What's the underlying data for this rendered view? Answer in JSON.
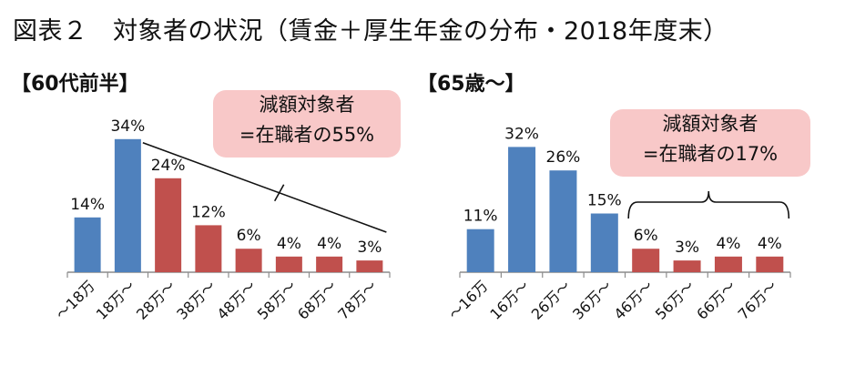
{
  "title": "図表２　対象者の状況（賃金＋厚生年金の分布・2018年度末）",
  "colors": {
    "blue": "#4f81bd",
    "red": "#c0504d",
    "callout_bg": "#f8c8c8",
    "axis": "#8c8c8c"
  },
  "chart_data": [
    {
      "type": "bar",
      "subtitle": "【60代前半】",
      "categories": [
        "～18万",
        "18万～",
        "28万～",
        "38万～",
        "48万～",
        "58万～",
        "68万～",
        "78万～"
      ],
      "values": [
        14,
        34,
        24,
        12,
        6,
        4,
        4,
        3
      ],
      "value_labels": [
        "14%",
        "34%",
        "24%",
        "12%",
        "6%",
        "4%",
        "4%",
        "3%"
      ],
      "bar_colors": [
        "#4f81bd",
        "#4f81bd",
        "#c0504d",
        "#c0504d",
        "#c0504d",
        "#c0504d",
        "#c0504d",
        "#c0504d"
      ],
      "ylim": [
        0,
        40
      ],
      "annotation": {
        "line1": "減額対象者",
        "line2": "=在職者の55%"
      }
    },
    {
      "type": "bar",
      "subtitle": "【65歳～】",
      "categories": [
        "～16万",
        "16万～",
        "26万～",
        "36万～",
        "46万～",
        "56万～",
        "66万～",
        "76万～"
      ],
      "values": [
        11,
        32,
        26,
        15,
        6,
        3,
        4,
        4
      ],
      "value_labels": [
        "11%",
        "32%",
        "26%",
        "15%",
        "6%",
        "3%",
        "4%",
        "4%"
      ],
      "bar_colors": [
        "#4f81bd",
        "#4f81bd",
        "#4f81bd",
        "#4f81bd",
        "#c0504d",
        "#c0504d",
        "#c0504d",
        "#c0504d"
      ],
      "ylim": [
        0,
        40
      ],
      "annotation": {
        "line1": "減額対象者",
        "line2": "=在職者の17%"
      }
    }
  ]
}
